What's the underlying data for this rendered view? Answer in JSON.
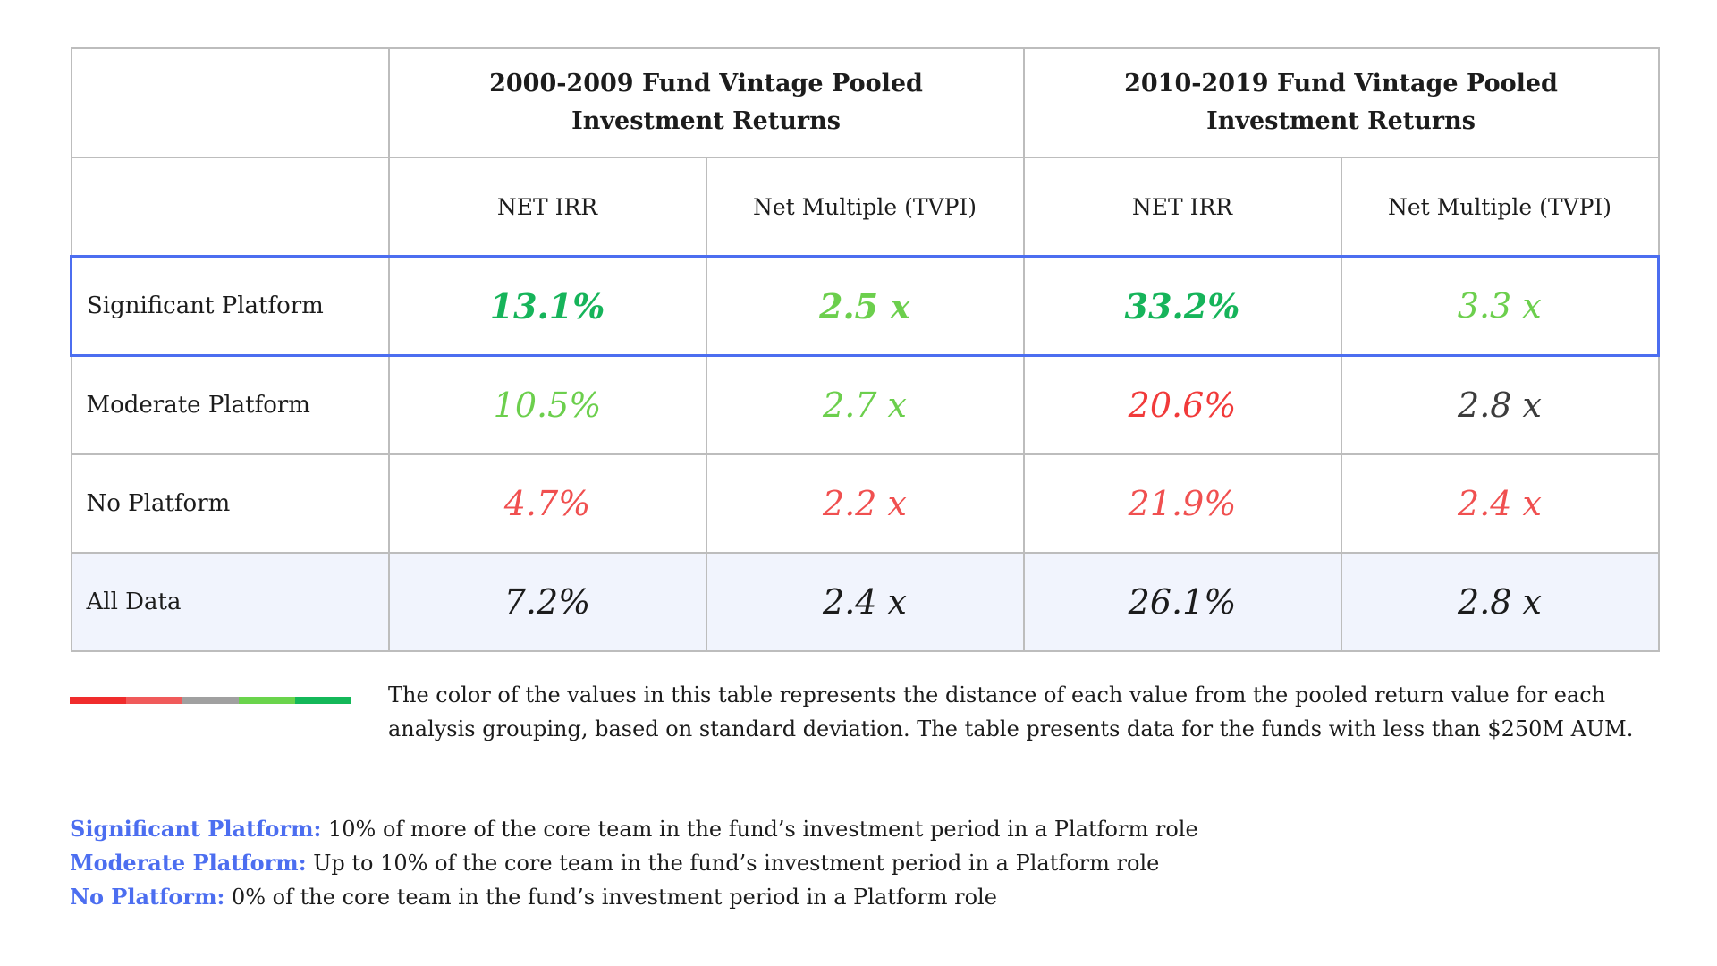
{
  "colors": {
    "dark_green": "#16b45a",
    "light_green": "#6ccf4d",
    "gray": "#3c3c3c",
    "light_red": "#f05050",
    "red": "#f13a3a",
    "neutral": "#1c1c1c",
    "highlight_border": "#4c6ef0",
    "definition_term": "#4c6ef0",
    "all_data_bg": "#f1f4fd"
  },
  "legend": {
    "scale_colors": [
      "#f02c2c",
      "#f05a5a",
      "#a0a0a0",
      "#6ad44c",
      "#14b859"
    ],
    "text": "The color of the values in this table represents the distance of each value from the pooled return value for each analysis grouping, based on standard deviation. The table presents data for the funds with less than $250M AUM."
  },
  "definitions": [
    {
      "term": "Significant Platform:",
      "text": " 10% of more of the core team in the fund’s investment period in a Platform role"
    },
    {
      "term": "Moderate Platform:",
      "text": " Up to 10% of the core team in the fund’s investment period in a Platform role"
    },
    {
      "term": "No Platform:",
      "text": " 0% of the core team in the fund’s investment period in a Platform role"
    }
  ],
  "chart_data": {
    "type": "table",
    "column_groups": [
      "2000-2009 Fund Vintage Pooled Investment Returns",
      "2010-2019 Fund Vintage Pooled Investment Returns"
    ],
    "columns": [
      "NET IRR",
      "Net Multiple (TVPI)",
      "NET IRR",
      "Net Multiple (TVPI)"
    ],
    "rows": [
      {
        "label": "Significant Platform",
        "cells": [
          {
            "text": "13.1%",
            "value": 13.1,
            "color": "dark_green",
            "bold": true
          },
          {
            "text": "2.5 x",
            "value": 2.5,
            "color": "light_green",
            "bold": true
          },
          {
            "text": "33.2%",
            "value": 33.2,
            "color": "dark_green",
            "bold": true
          },
          {
            "text": "3.3 x",
            "value": 3.3,
            "color": "light_green",
            "bold": false
          }
        ]
      },
      {
        "label": "Moderate Platform",
        "cells": [
          {
            "text": "10.5%",
            "value": 10.5,
            "color": "light_green",
            "bold": false
          },
          {
            "text": "2.7 x",
            "value": 2.7,
            "color": "light_green",
            "bold": false
          },
          {
            "text": "20.6%",
            "value": 20.6,
            "color": "red",
            "bold": false
          },
          {
            "text": "2.8 x",
            "value": 2.8,
            "color": "gray",
            "bold": false
          }
        ]
      },
      {
        "label": "No Platform",
        "cells": [
          {
            "text": "4.7%",
            "value": 4.7,
            "color": "light_red",
            "bold": false
          },
          {
            "text": "2.2 x",
            "value": 2.2,
            "color": "light_red",
            "bold": false
          },
          {
            "text": "21.9%",
            "value": 21.9,
            "color": "light_red",
            "bold": false
          },
          {
            "text": "2.4 x",
            "value": 2.4,
            "color": "light_red",
            "bold": false
          }
        ]
      },
      {
        "label": "All Data",
        "cells": [
          {
            "text": "7.2%",
            "value": 7.2,
            "color": "neutral",
            "bold": false
          },
          {
            "text": "2.4 x",
            "value": 2.4,
            "color": "neutral",
            "bold": false
          },
          {
            "text": "26.1%",
            "value": 26.1,
            "color": "neutral",
            "bold": false
          },
          {
            "text": "2.8 x",
            "value": 2.8,
            "color": "neutral",
            "bold": false
          }
        ]
      }
    ]
  }
}
